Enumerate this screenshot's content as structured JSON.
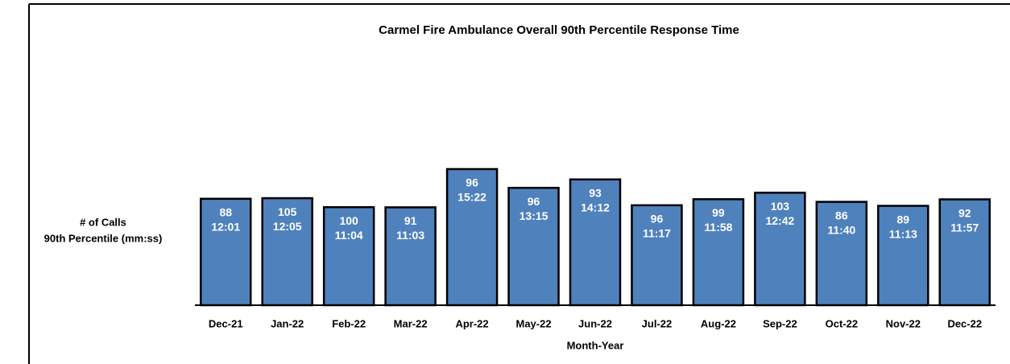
{
  "chart_data": {
    "type": "bar",
    "title": "Carmel Fire Ambulance  Overall 90th Percentile Response Time",
    "ylabel": [
      "# of Calls",
      "90th Percentile (mm:ss)"
    ],
    "xlabel": "Month-Year",
    "categories": [
      "Dec-21",
      "Jan-22",
      "Feb-22",
      "Mar-22",
      "Apr-22",
      "May-22",
      "Jun-22",
      "Jul-22",
      "Aug-22",
      "Sep-22",
      "Oct-22",
      "Nov-22",
      "Dec-22"
    ],
    "calls": [
      88,
      105,
      100,
      91,
      96,
      96,
      93,
      96,
      99,
      103,
      86,
      89,
      92
    ],
    "values": [
      721,
      725,
      664,
      663,
      922,
      795,
      852,
      677,
      718,
      762,
      700,
      673,
      717
    ],
    "value_labels": [
      "12:01",
      "12:05",
      "11:04",
      "11:03",
      "15:22",
      "13:15",
      "14:12",
      "11:17",
      "11:58",
      "12:42",
      "11:40",
      "11:13",
      "11:57"
    ],
    "color": "#4f81bd",
    "ylim": [
      0,
      1800
    ]
  }
}
